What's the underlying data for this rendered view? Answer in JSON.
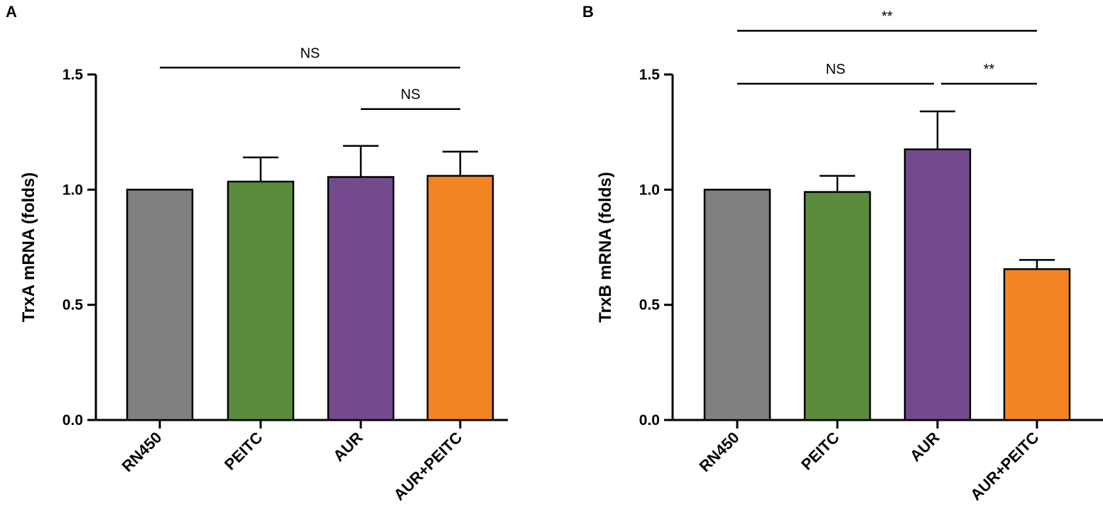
{
  "chart_data": [
    {
      "panel": "A",
      "type": "bar",
      "ylabel": "TrxA mRNA (folds)",
      "ylim": [
        0,
        1.5
      ],
      "yticks": [
        "0.0",
        "0.5",
        "1.0",
        "1.5"
      ],
      "categories": [
        "RN450",
        "PEITC",
        "AUR",
        "AUR+PEITC"
      ],
      "values": [
        1.0,
        1.035,
        1.055,
        1.06
      ],
      "errors": [
        0,
        0.105,
        0.135,
        0.105
      ],
      "colors": [
        "#808080",
        "#5B8C3E",
        "#734A8C",
        "#F28522"
      ],
      "significance": [
        {
          "from": 0,
          "to": 3,
          "level": 1.53,
          "label": "NS"
        },
        {
          "from": 2,
          "to": 3,
          "level": 1.35,
          "label": "NS"
        }
      ]
    },
    {
      "panel": "B",
      "type": "bar",
      "ylabel": "TrxB mRNA (folds)",
      "ylim": [
        0,
        1.5
      ],
      "yticks": [
        "0.0",
        "0.5",
        "1.0",
        "1.5"
      ],
      "categories": [
        "RN450",
        "PEITC",
        "AUR",
        "AUR+PEITC"
      ],
      "values": [
        1.0,
        0.99,
        1.175,
        0.655
      ],
      "errors": [
        0,
        0.07,
        0.165,
        0.04
      ],
      "colors": [
        "#808080",
        "#5B8C3E",
        "#734A8C",
        "#F28522"
      ],
      "significance": [
        {
          "from": 0,
          "to": 3,
          "level": 1.69,
          "label": "**"
        },
        {
          "from": 0,
          "to": 2,
          "level": 1.46,
          "label": "NS"
        },
        {
          "from": 2,
          "to": 3,
          "level": 1.46,
          "label": "**"
        }
      ]
    }
  ]
}
